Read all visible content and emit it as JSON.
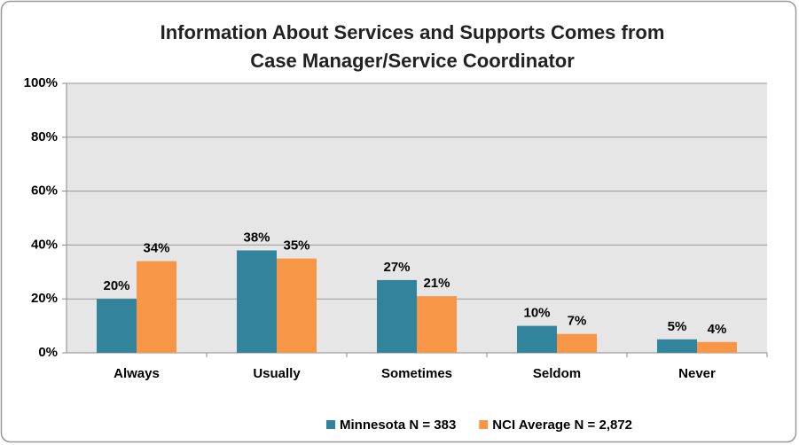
{
  "chart_data": {
    "type": "bar",
    "title": [
      "Information About Services and Supports Comes from",
      "Case Manager/Service Coordinator"
    ],
    "categories": [
      "Always",
      "Usually",
      "Sometimes",
      "Seldom",
      "Never"
    ],
    "series": [
      {
        "name": "Minnesota N = 383",
        "color": "#31849b",
        "values": [
          20,
          38,
          27,
          10,
          5
        ],
        "value_labels": [
          "20%",
          "38%",
          "27%",
          "10%",
          "5%"
        ]
      },
      {
        "name": "NCI Average N = 2,872",
        "color": "#f79646",
        "values": [
          34,
          35,
          21,
          7,
          4
        ],
        "value_labels": [
          "34%",
          "35%",
          "21%",
          "7%",
          "4%"
        ]
      }
    ],
    "ylim": [
      0,
      100
    ],
    "yticks": [
      {
        "value": 0,
        "label": "0%"
      },
      {
        "value": 20,
        "label": "20%"
      },
      {
        "value": 40,
        "label": "40%"
      },
      {
        "value": 60,
        "label": "60%"
      },
      {
        "value": 80,
        "label": "80%"
      },
      {
        "value": 100,
        "label": "100%"
      }
    ],
    "grid": true,
    "legend": "bottom"
  }
}
